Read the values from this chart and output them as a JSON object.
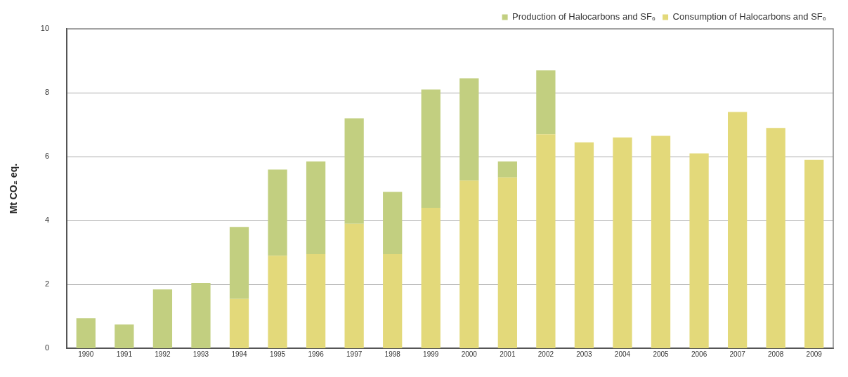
{
  "chart_data": {
    "type": "bar",
    "stacked": true,
    "ylabel": "Mt CO₂ eq.",
    "categories": [
      "1990",
      "1991",
      "1992",
      "1993",
      "1994",
      "1995",
      "1996",
      "1997",
      "1998",
      "1999",
      "2000",
      "2001",
      "2002",
      "2003",
      "2004",
      "2005",
      "2006",
      "2007",
      "2008",
      "2009"
    ],
    "series": [
      {
        "name": "Consumption of Halocarbons and SF₆",
        "color": "#e3d97a",
        "values": [
          0,
          0,
          0,
          0,
          1.55,
          2.9,
          2.95,
          3.9,
          2.95,
          4.4,
          5.25,
          5.35,
          6.7,
          6.45,
          6.6,
          6.65,
          6.1,
          7.4,
          6.9,
          5.9
        ]
      },
      {
        "name": "Production of Halocarbons and SF₆",
        "color": "#c2cf80",
        "values": [
          0.95,
          0.75,
          1.85,
          2.05,
          2.25,
          2.7,
          2.9,
          3.3,
          1.95,
          3.7,
          3.2,
          0.5,
          2.0,
          0,
          0,
          0,
          0,
          0,
          0,
          0
        ]
      }
    ],
    "ylim": [
      0,
      10
    ],
    "yticks": [
      0,
      2,
      4,
      6,
      8,
      10
    ],
    "grid": "y",
    "legend": "top right"
  }
}
